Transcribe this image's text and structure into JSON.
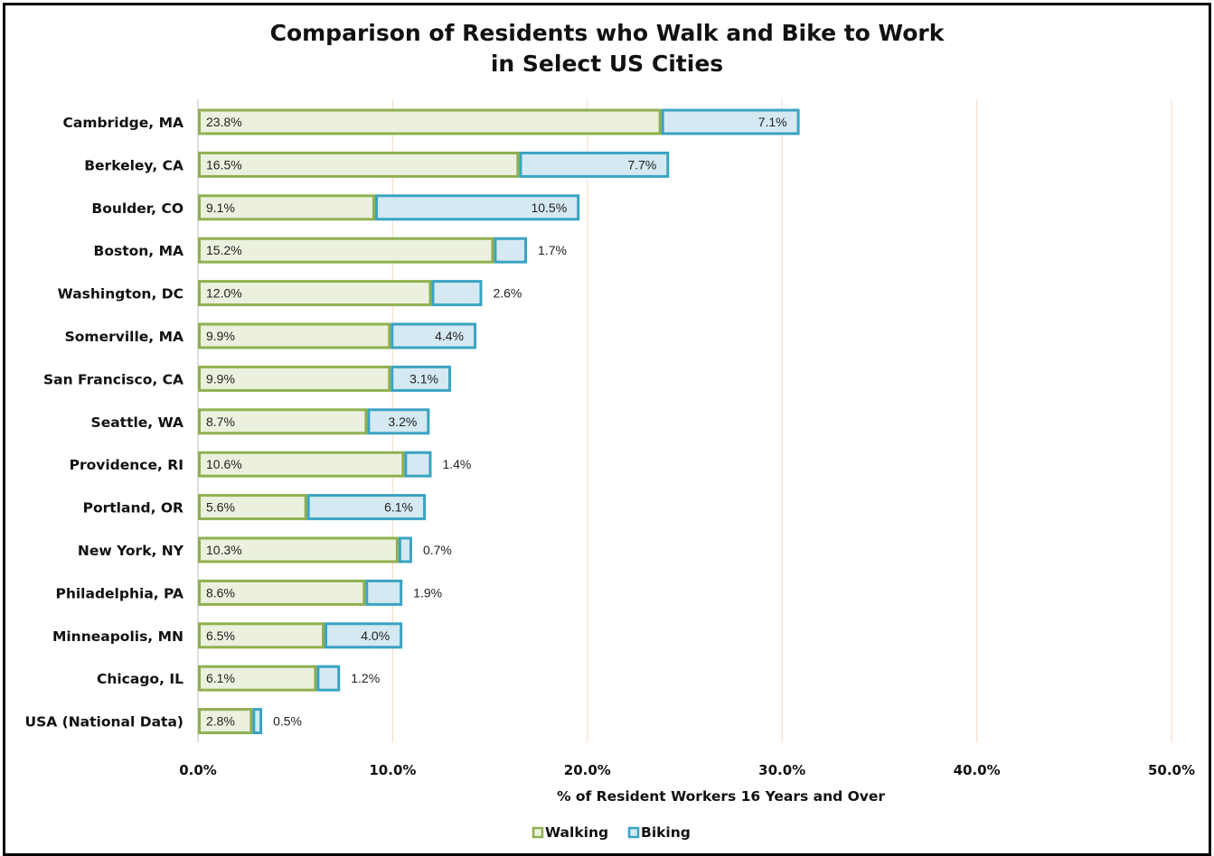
{
  "chart_data": {
    "type": "bar",
    "orientation": "horizontal",
    "stacked": true,
    "title": [
      "Comparison of Residents who Walk and Bike to Work",
      "in Select US Cities"
    ],
    "xlabel": "% of Resident Workers 16 Years and Over",
    "ylabel": "",
    "xlim": [
      0,
      50
    ],
    "x_ticks": [
      "0.0%",
      "10.0%",
      "20.0%",
      "30.0%",
      "40.0%",
      "50.0%"
    ],
    "categories": [
      "Cambridge, MA",
      "Berkeley, CA",
      "Boulder, CO",
      "Boston, MA",
      "Washington, DC",
      "Somerville, MA",
      "San Francisco, CA",
      "Seattle, WA",
      "Providence, RI",
      "Portland, OR",
      "New York, NY",
      "Philadelphia, PA",
      "Minneapolis, MN",
      "Chicago, IL",
      "USA (National Data)"
    ],
    "series": [
      {
        "name": "Walking",
        "values": [
          23.8,
          16.5,
          9.1,
          15.2,
          12.0,
          9.9,
          9.9,
          8.7,
          10.6,
          5.6,
          10.3,
          8.6,
          6.5,
          6.1,
          2.8
        ],
        "labels": [
          "23.8%",
          "16.5%",
          "9.1%",
          "15.2%",
          "12.0%",
          "9.9%",
          "9.9%",
          "8.7%",
          "10.6%",
          "5.6%",
          "10.3%",
          "8.6%",
          "6.5%",
          "6.1%",
          "2.8%"
        ],
        "fill": "#ebf1de",
        "border": "#8fb04f"
      },
      {
        "name": "Biking",
        "values": [
          7.1,
          7.7,
          10.5,
          1.7,
          2.6,
          4.4,
          3.1,
          3.2,
          1.4,
          6.1,
          0.7,
          1.9,
          4.0,
          1.2,
          0.5
        ],
        "labels": [
          "7.1%",
          "7.7%",
          "10.5%",
          "1.7%",
          "2.6%",
          "4.4%",
          "3.1%",
          "3.2%",
          "1.4%",
          "6.1%",
          "0.7%",
          "1.9%",
          "4.0%",
          "1.2%",
          "0.5%"
        ],
        "fill": "#d4e9f1",
        "border": "#3aa3c2"
      }
    ],
    "grid": "vertical",
    "grid_color": "#f6d8c8",
    "legend": "bottom-center"
  }
}
